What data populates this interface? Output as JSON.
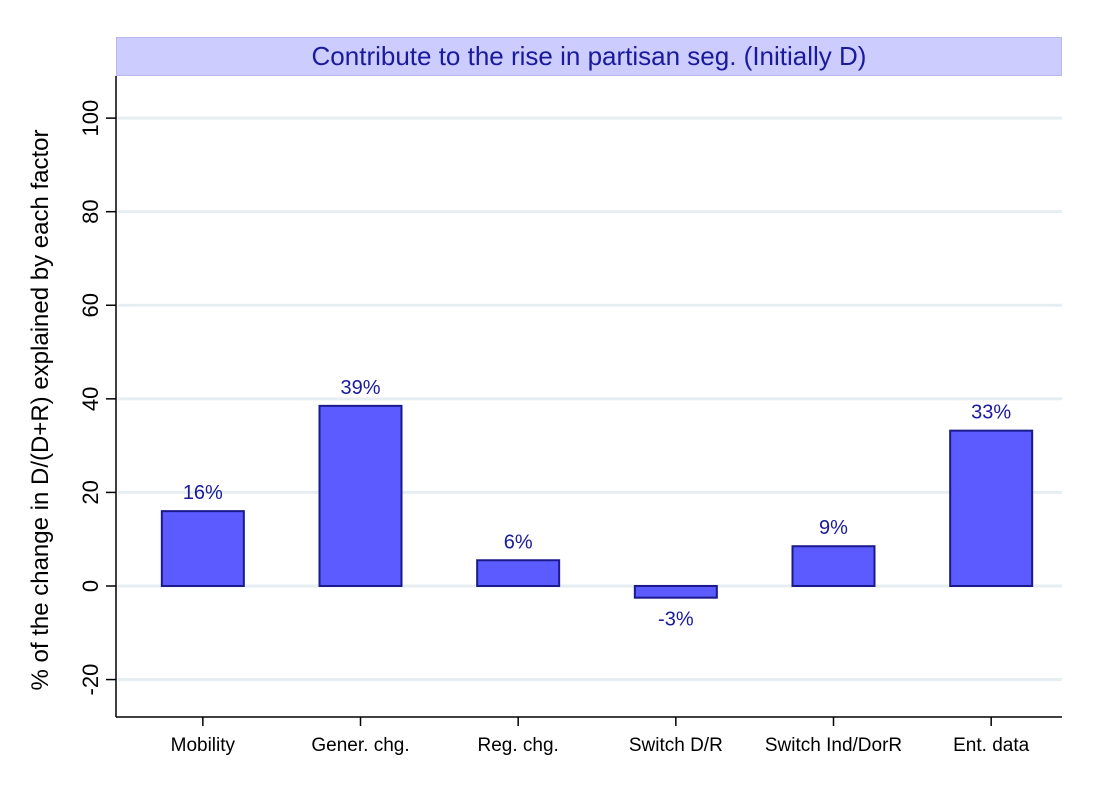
{
  "chart_data": {
    "type": "bar",
    "title": "Contribute to the rise in partisan seg. (Initially D)",
    "xlabel": "",
    "ylabel": "% of the change in D/(D+R) explained by each factor",
    "categories": [
      "Mobility",
      "Gener. chg.",
      "Reg. chg.",
      "Switch D/R",
      "Switch Ind/DorR",
      "Ent. data"
    ],
    "values": [
      16,
      38.5,
      5.5,
      -2.5,
      8.5,
      33.2
    ],
    "value_labels": [
      "16%",
      "39%",
      "6%",
      "-3%",
      "9%",
      "33%"
    ],
    "ylim": [
      -28,
      109
    ],
    "yticks": [
      -20,
      0,
      20,
      40,
      60,
      80,
      100
    ],
    "grid": true,
    "colors": {
      "bar_fill": "#5b5bff",
      "bar_stroke": "#1a1a8c",
      "label": "#1a1a9c",
      "title_bg": "#ccccff",
      "grid": "#e6eef2"
    }
  }
}
